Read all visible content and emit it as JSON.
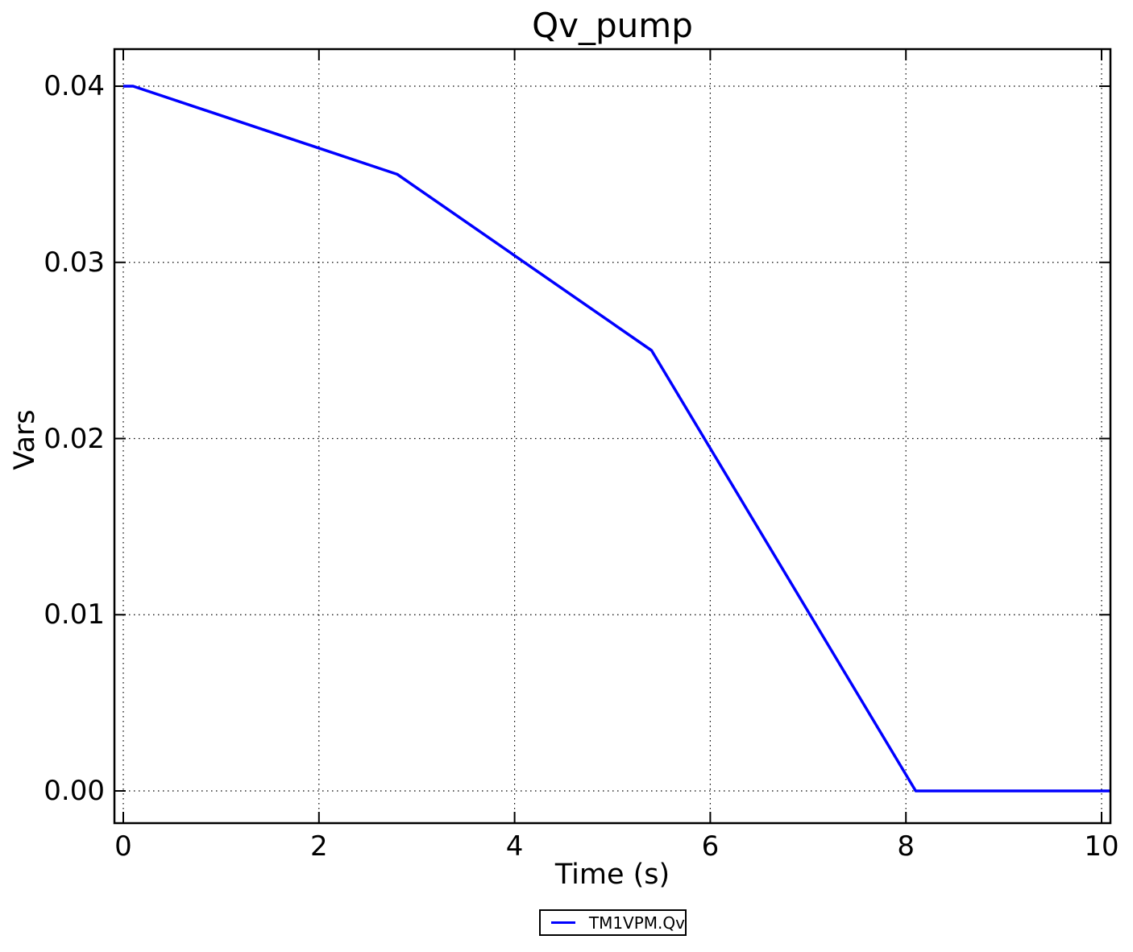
{
  "chart_data": {
    "type": "line",
    "title": "Qv_pump",
    "xlabel": "Time (s)",
    "ylabel": "Vars",
    "xlim": [
      0,
      10
    ],
    "ylim": [
      0,
      0.04
    ],
    "xticks": [
      0,
      2,
      4,
      6,
      8,
      10
    ],
    "yticks": [
      "0.00",
      "0.01",
      "0.02",
      "0.03",
      "0.04"
    ],
    "grid": "dotted",
    "grid_color": "#000000",
    "frame_color": "#000000",
    "legend_position": "bottom-center",
    "series": [
      {
        "name": "TM1VPM.Qv",
        "color": "#0000ff",
        "points": [
          [
            0,
            0.04
          ],
          [
            0.1,
            0.04
          ],
          [
            2.8,
            0.035
          ],
          [
            5.4,
            0.025
          ],
          [
            8.1,
            0.0
          ],
          [
            10,
            0.0
          ]
        ]
      }
    ]
  }
}
